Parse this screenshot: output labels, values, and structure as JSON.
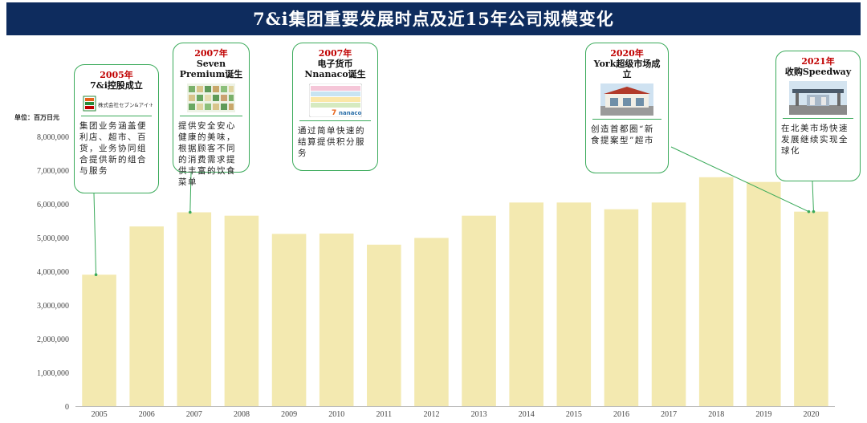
{
  "header": {
    "title": "7&i集团重要发展时点及近15年公司规模变化"
  },
  "unit_label": "单位：百万日元",
  "chart_data": {
    "type": "bar",
    "title": "7&i集团重要发展时点及近15年公司规模变化",
    "categories": [
      "2005",
      "2006",
      "2007",
      "2008",
      "2009",
      "2010",
      "2011",
      "2012",
      "2013",
      "2014",
      "2015",
      "2016",
      "2017",
      "2018",
      "2019",
      "2020"
    ],
    "values": [
      3900000,
      5330000,
      5750000,
      5650000,
      5110000,
      5120000,
      4790000,
      4990000,
      5650000,
      6040000,
      6040000,
      5840000,
      6040000,
      6790000,
      6650000,
      5770000
    ],
    "ylim": [
      0,
      8000000
    ],
    "yticks": [
      "0",
      "1,000,000",
      "2,000,000",
      "3,000,000",
      "4,000,000",
      "5,000,000",
      "6,000,000",
      "7,000,000",
      "8,000,000"
    ],
    "ylabel": "",
    "xlabel": "",
    "grid": false,
    "colors": {
      "bar": "#f3e9b0",
      "axis": "#bbbbbb",
      "leader": "#3aaa5a",
      "frame": "#3aaa5a",
      "header_bg": "#0e2c5e",
      "year": "#c00000"
    }
  },
  "callouts": [
    {
      "year": "2005年",
      "title": "7&i控股成立",
      "image": "logo-7andi",
      "desc": "集团业务涵盖便利店、超市、百货，业务协同组合提供新的组合与服务"
    },
    {
      "year": "2007年",
      "title": "Seven Premium诞生",
      "image": "product-shelf",
      "desc": "提供安全安心健康的美味，根据顾客不同的消费需求提供丰富的饮食菜单"
    },
    {
      "year": "2007年",
      "title": "电子货币Nnanaco诞生",
      "image": "nanaco-card",
      "card_text": "nanaco",
      "desc": "通过简单快速的结算提供积分服务"
    },
    {
      "year": "2020年",
      "title": "York超级市场成立",
      "image": "york-store",
      "desc": "创造首都圈“新食提案型”超市"
    },
    {
      "year": "2021年",
      "title": "收购Speedway",
      "image": "speedway-station",
      "desc": "在北美市场快速发展继续实现全球化"
    }
  ],
  "logo_text": "株式会社セブン&アイ·HLDGS."
}
